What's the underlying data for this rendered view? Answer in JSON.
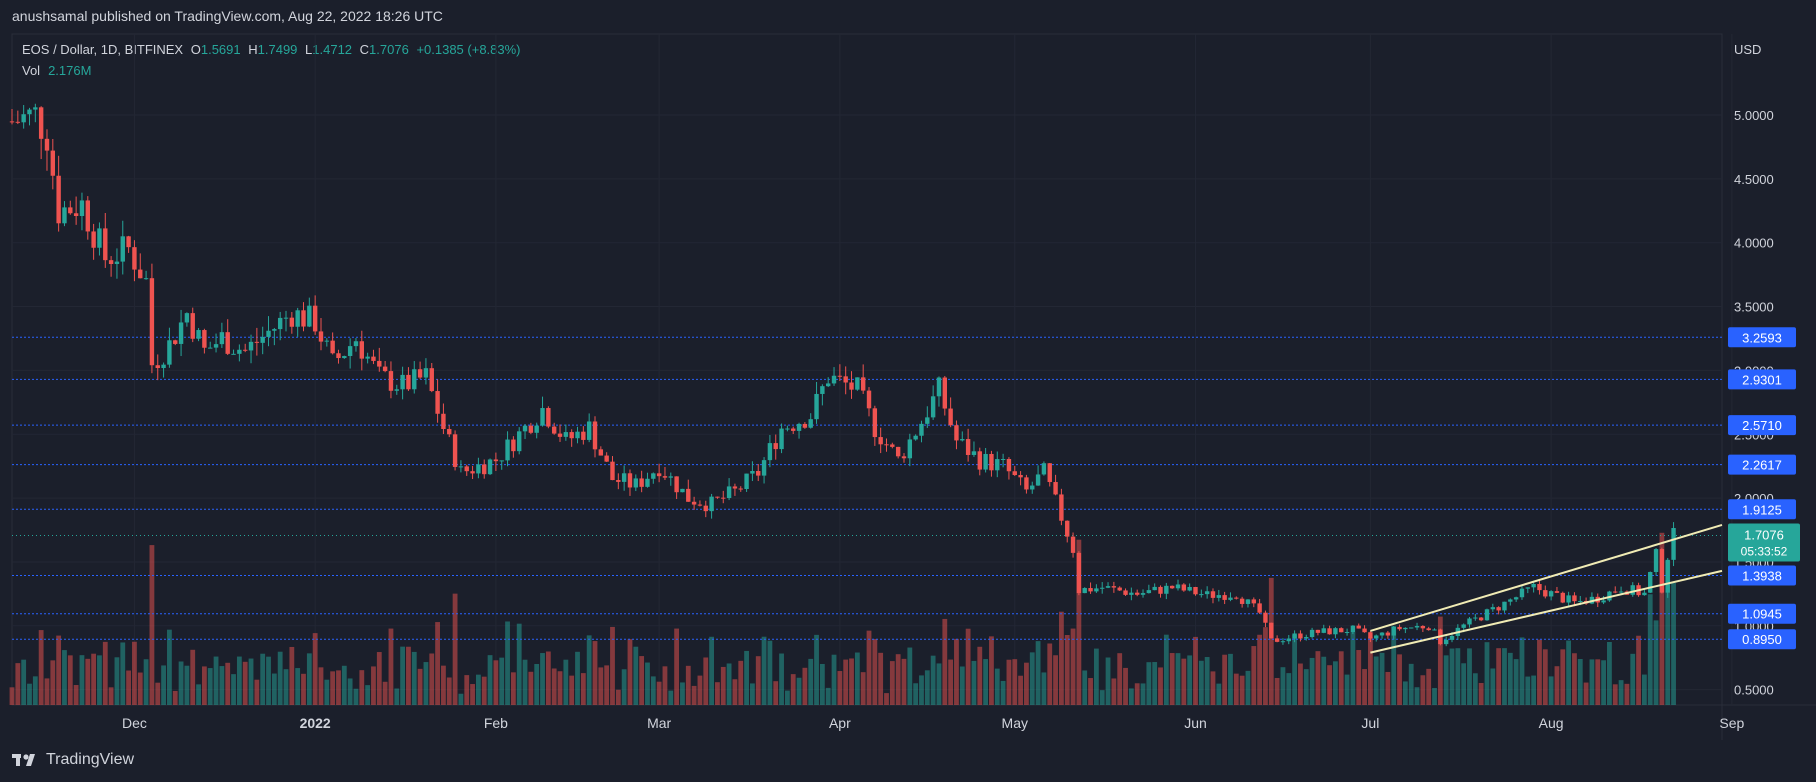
{
  "header": {
    "published": "anushsamal published on TradingView.com, Aug 22, 2022 18:26 UTC"
  },
  "legend": {
    "symbol": "EOS / Dollar, 1D, BITFINEX",
    "o_label": "O",
    "o": "1.5691",
    "h_label": "H",
    "h": "1.7499",
    "l_label": "L",
    "l": "1.4712",
    "c_label": "C",
    "c": "1.7076",
    "change": "+0.1385 (+8.83%)"
  },
  "volume": {
    "label": "Vol",
    "value": "2.176M"
  },
  "footer": {
    "brand": "TradingView"
  },
  "chart_data": {
    "type": "candlestick",
    "currency": "USD",
    "y_ticks": [
      "5.0000",
      "4.5000",
      "4.0000",
      "3.5000",
      "3.0000",
      "2.5000",
      "2.0000",
      "1.5000",
      "1.0000",
      "0.5000"
    ],
    "ylim": [
      0.5,
      5.0
    ],
    "x_ticks": [
      "Dec",
      "2022",
      "Feb",
      "Mar",
      "Apr",
      "May",
      "Jun",
      "Jul",
      "Aug",
      "Sep"
    ],
    "horizontal_levels": [
      "3.2593",
      "2.9301",
      "2.5710",
      "2.2617",
      "1.9125",
      "1.3938",
      "1.0945",
      "0.8950"
    ],
    "current_price": {
      "value": "1.7076",
      "countdown": "05:33:52"
    },
    "colors": {
      "up": "#26a69a",
      "down": "#ef5350",
      "level_tag": "#2962ff",
      "level_line": "#2962ff",
      "trendline": "#f0ebb4"
    },
    "trendlines": [
      {
        "start": [
          "2022-07-01",
          0.96
        ],
        "end": [
          "2022-08-31",
          1.79
        ]
      },
      {
        "start": [
          "2022-07-01",
          0.79
        ],
        "end": [
          "2022-09-05",
          1.43
        ]
      }
    ],
    "price_path": [
      [
        "2021-11-10",
        4.95
      ],
      [
        "2021-11-14",
        5.0
      ],
      [
        "2021-11-16",
        4.85
      ],
      [
        "2021-11-18",
        4.25
      ],
      [
        "2021-11-22",
        4.3
      ],
      [
        "2021-11-26",
        3.88
      ],
      [
        "2021-11-30",
        3.95
      ],
      [
        "2021-12-03",
        3.7
      ],
      [
        "2021-12-04",
        3.05
      ],
      [
        "2021-12-07",
        3.2
      ],
      [
        "2021-12-10",
        3.45
      ],
      [
        "2021-12-13",
        3.15
      ],
      [
        "2021-12-16",
        3.25
      ],
      [
        "2021-12-20",
        3.15
      ],
      [
        "2021-12-24",
        3.3
      ],
      [
        "2021-12-28",
        3.45
      ],
      [
        "2022-01-01",
        3.38
      ],
      [
        "2022-01-04",
        3.05
      ],
      [
        "2022-01-08",
        3.25
      ],
      [
        "2022-01-12",
        2.95
      ],
      [
        "2022-01-16",
        2.88
      ],
      [
        "2022-01-20",
        2.95
      ],
      [
        "2022-01-23",
        2.55
      ],
      [
        "2022-01-26",
        2.2
      ],
      [
        "2022-02-01",
        2.3
      ],
      [
        "2022-02-06",
        2.55
      ],
      [
        "2022-02-09",
        2.7
      ],
      [
        "2022-02-13",
        2.45
      ],
      [
        "2022-02-17",
        2.55
      ],
      [
        "2022-02-21",
        2.15
      ],
      [
        "2022-02-25",
        2.1
      ],
      [
        "2022-03-01",
        2.25
      ],
      [
        "2022-03-06",
        2.0
      ],
      [
        "2022-03-10",
        1.95
      ],
      [
        "2022-03-14",
        2.05
      ],
      [
        "2022-03-18",
        2.2
      ],
      [
        "2022-03-22",
        2.55
      ],
      [
        "2022-03-27",
        2.65
      ],
      [
        "2022-03-30",
        2.95
      ],
      [
        "2022-04-04",
        2.85
      ],
      [
        "2022-04-07",
        2.55
      ],
      [
        "2022-04-11",
        2.3
      ],
      [
        "2022-04-15",
        2.6
      ],
      [
        "2022-04-18",
        2.85
      ],
      [
        "2022-04-21",
        2.45
      ],
      [
        "2022-04-25",
        2.3
      ],
      [
        "2022-04-29",
        2.25
      ],
      [
        "2022-05-03",
        2.05
      ],
      [
        "2022-05-06",
        2.2
      ],
      [
        "2022-05-09",
        1.85
      ],
      [
        "2022-05-11",
        1.6
      ],
      [
        "2022-05-12",
        1.28
      ],
      [
        "2022-05-16",
        1.3
      ],
      [
        "2022-05-22",
        1.25
      ],
      [
        "2022-05-28",
        1.3
      ],
      [
        "2022-06-03",
        1.24
      ],
      [
        "2022-06-08",
        1.25
      ],
      [
        "2022-06-12",
        1.1
      ],
      [
        "2022-06-14",
        0.88
      ],
      [
        "2022-06-18",
        0.92
      ],
      [
        "2022-06-22",
        0.95
      ],
      [
        "2022-06-28",
        0.97
      ],
      [
        "2022-07-01",
        0.9
      ],
      [
        "2022-07-06",
        0.98
      ],
      [
        "2022-07-11",
        1.0
      ],
      [
        "2022-07-13",
        0.88
      ],
      [
        "2022-07-17",
        1.0
      ],
      [
        "2022-07-21",
        1.1
      ],
      [
        "2022-07-25",
        1.2
      ],
      [
        "2022-07-29",
        1.3
      ],
      [
        "2022-08-01",
        1.25
      ],
      [
        "2022-08-05",
        1.18
      ],
      [
        "2022-08-09",
        1.22
      ],
      [
        "2022-08-13",
        1.3
      ],
      [
        "2022-08-17",
        1.25
      ],
      [
        "2022-08-19",
        1.55
      ],
      [
        "2022-08-20",
        1.3
      ],
      [
        "2022-08-21",
        1.55
      ],
      [
        "2022-08-22",
        1.7076
      ]
    ]
  }
}
